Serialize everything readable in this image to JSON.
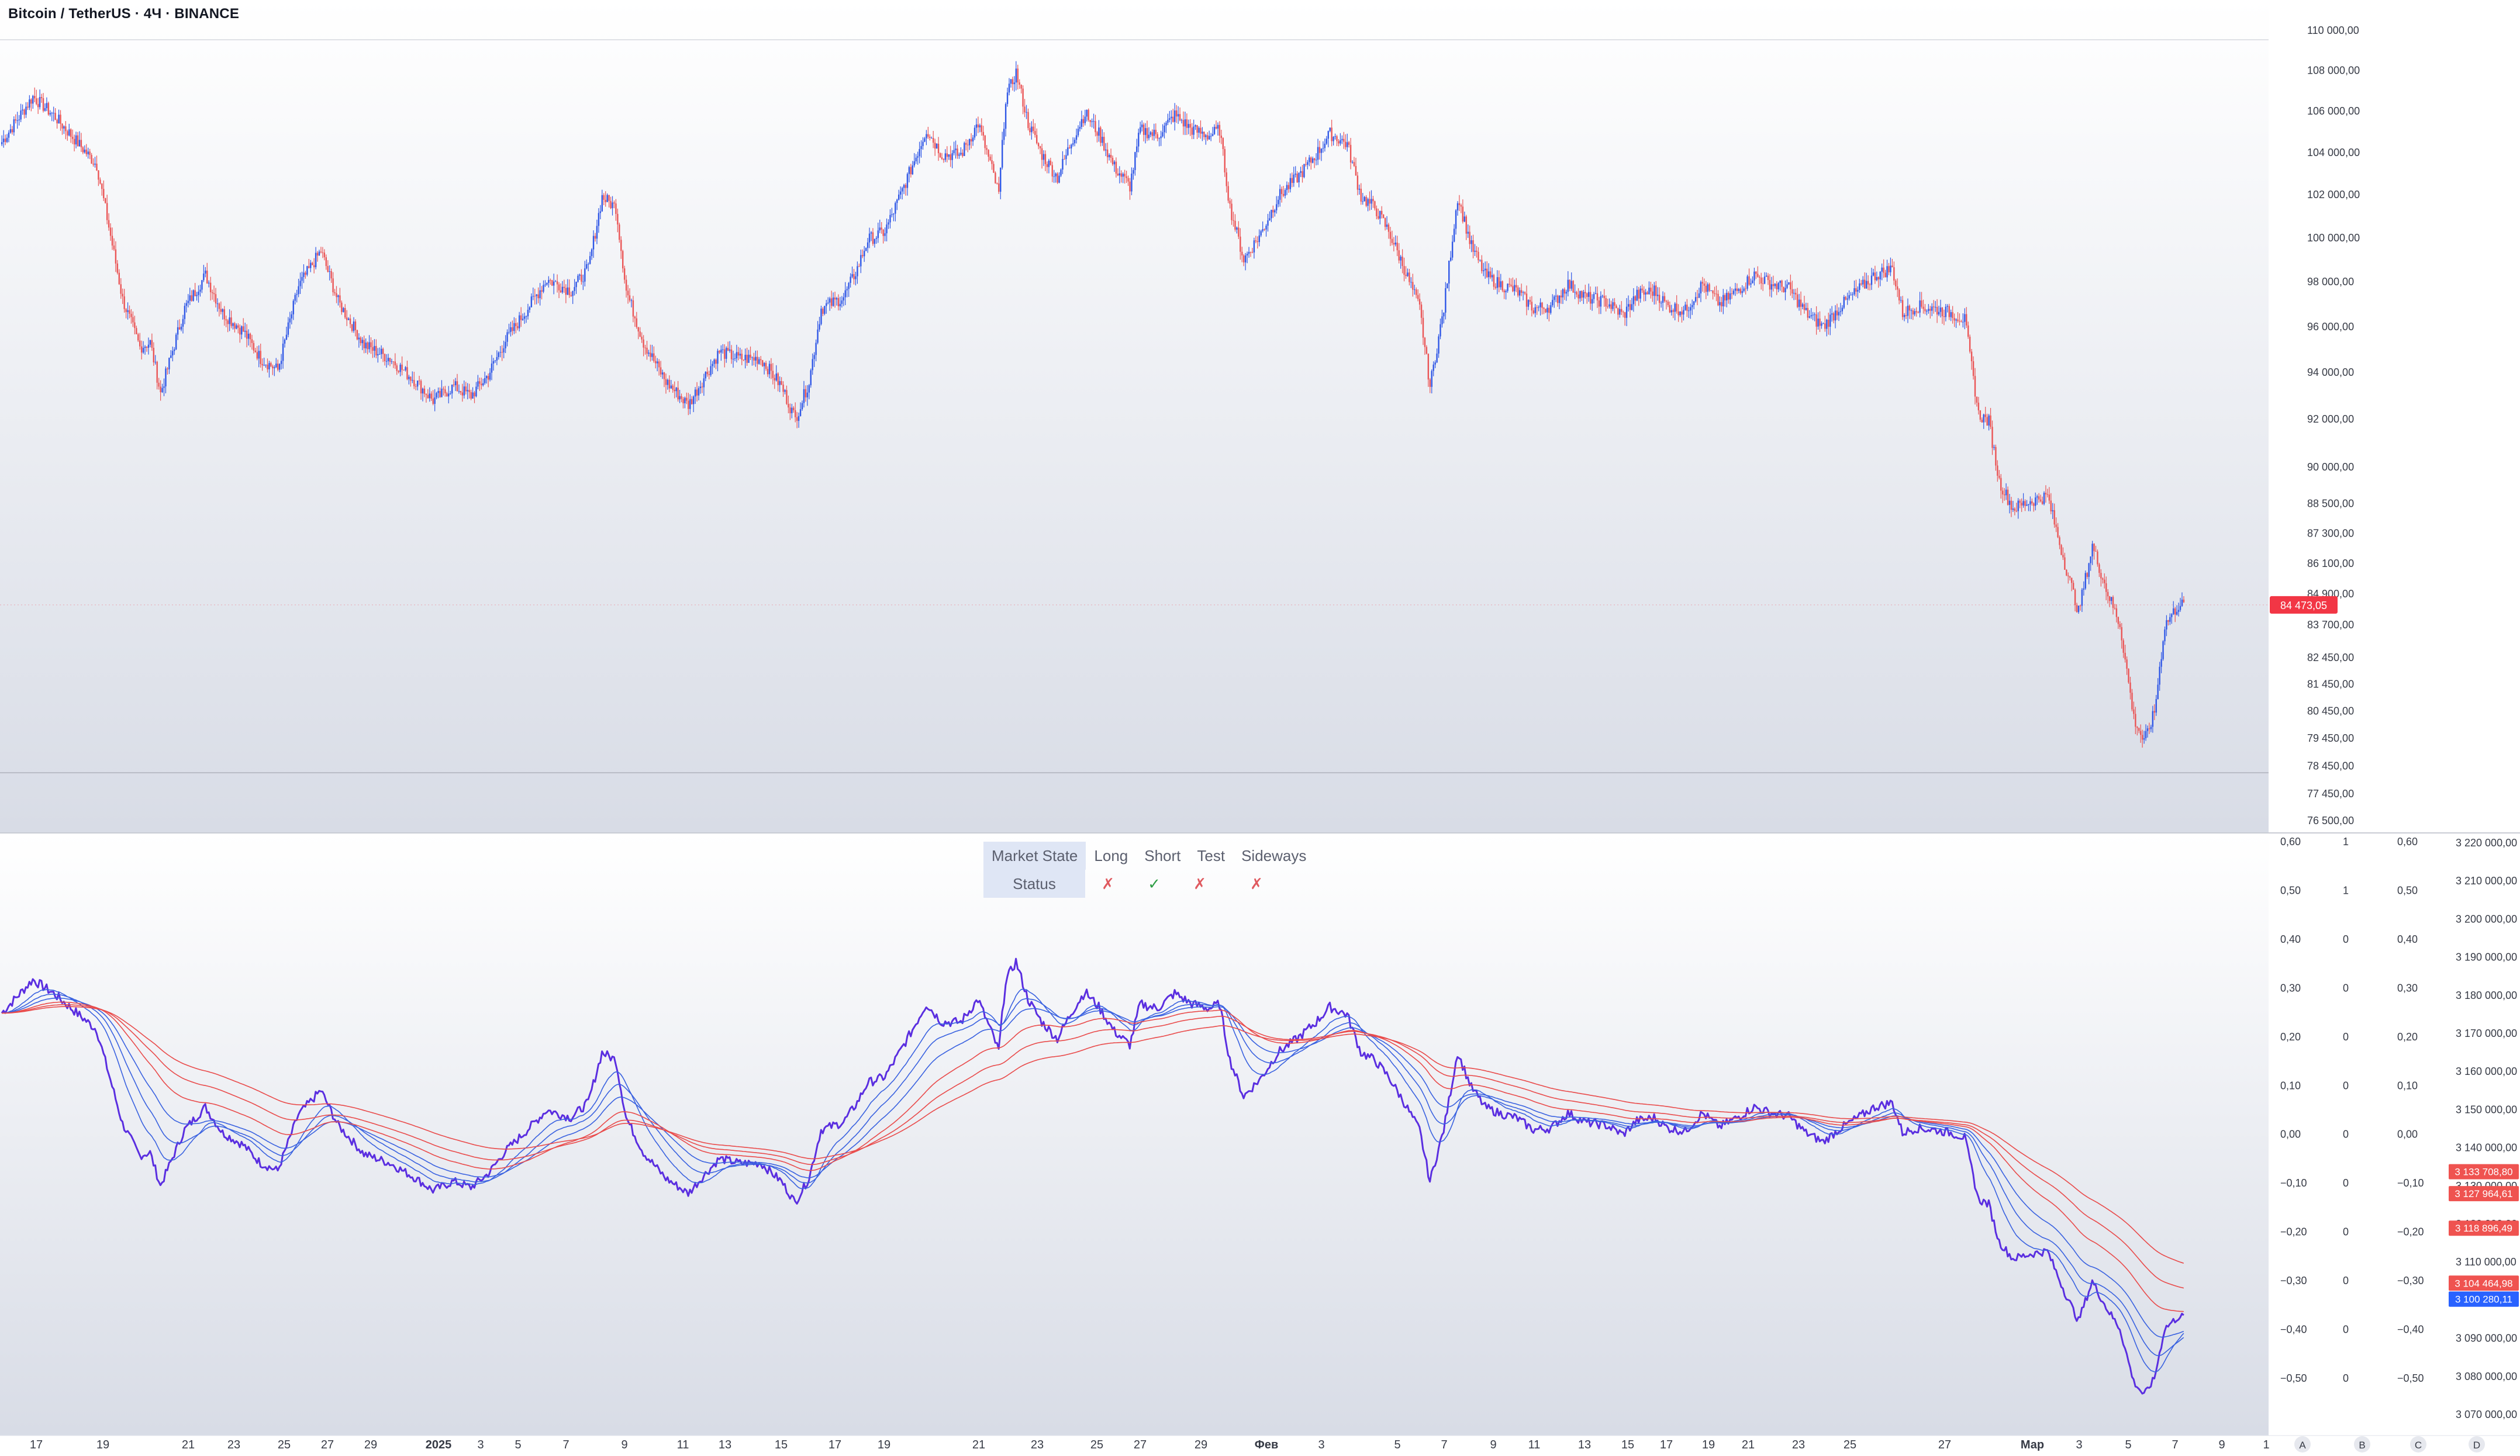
{
  "chart_title": "Bitcoin / TetherUS · 4Ч · BINANCE",
  "market_state": {
    "headers": [
      "Market State",
      "Long",
      "Short",
      "Test",
      "Sideways"
    ],
    "row_label": "Status",
    "values": [
      "✗",
      "✓",
      "✗",
      "✗"
    ]
  },
  "chart_data": [
    {
      "type": "candlestick",
      "series": [
        {
          "name": "Bitcoin / TetherUS",
          "values": "price path, approx 4H closes"
        }
      ],
      "ylim": [
        76500,
        110000
      ],
      "y_scale": "log",
      "yticks": [
        "110 000,00",
        "108 000,00",
        "106 000,00",
        "104 000,00",
        "102 000,00",
        "100 000,00",
        "98 000,00",
        "96 000,00",
        "94 000,00",
        "92 000,00",
        "90 000,00",
        "88 500,00",
        "87 300,00",
        "86 100,00",
        "84 900,00",
        "83 700,00",
        "82 450,00",
        "81 450,00",
        "80 450,00",
        "79 450,00",
        "78 450,00",
        "77 450,00",
        "76 500,00"
      ],
      "ytick_values": [
        110000,
        108000,
        106000,
        104000,
        102000,
        100000,
        98000,
        96000,
        94000,
        92000,
        90000,
        88500,
        87300,
        86100,
        84900,
        83700,
        82450,
        81450,
        80450,
        79450,
        78450,
        77450,
        76500
      ],
      "last_price_label": "84 473,05",
      "last_price": 84473.05,
      "keypoints": [
        [
          0,
          104500
        ],
        [
          18,
          106700
        ],
        [
          30,
          105800
        ],
        [
          55,
          103400
        ],
        [
          70,
          97200
        ],
        [
          80,
          95100
        ],
        [
          86,
          95300
        ],
        [
          92,
          93100
        ],
        [
          106,
          96800
        ],
        [
          118,
          98300
        ],
        [
          128,
          96600
        ],
        [
          140,
          95800
        ],
        [
          150,
          94600
        ],
        [
          160,
          94100
        ],
        [
          172,
          97800
        ],
        [
          185,
          99400
        ],
        [
          195,
          97100
        ],
        [
          210,
          95200
        ],
        [
          225,
          94600
        ],
        [
          240,
          93600
        ],
        [
          250,
          92800
        ],
        [
          262,
          93400
        ],
        [
          272,
          93000
        ],
        [
          282,
          93900
        ],
        [
          292,
          95400
        ],
        [
          303,
          96600
        ],
        [
          316,
          98100
        ],
        [
          330,
          97600
        ],
        [
          340,
          98600
        ],
        [
          348,
          101900
        ],
        [
          356,
          101400
        ],
        [
          362,
          97600
        ],
        [
          372,
          95300
        ],
        [
          385,
          93600
        ],
        [
          398,
          92600
        ],
        [
          408,
          93900
        ],
        [
          416,
          94900
        ],
        [
          428,
          94600
        ],
        [
          440,
          94600
        ],
        [
          452,
          93400
        ],
        [
          460,
          92000
        ],
        [
          468,
          93600
        ],
        [
          475,
          96800
        ],
        [
          488,
          97300
        ],
        [
          496,
          98600
        ],
        [
          502,
          99900
        ],
        [
          512,
          100300
        ],
        [
          520,
          101800
        ],
        [
          528,
          103400
        ],
        [
          536,
          105100
        ],
        [
          545,
          103900
        ],
        [
          556,
          103900
        ],
        [
          566,
          105400
        ],
        [
          574,
          103200
        ],
        [
          578,
          102000
        ],
        [
          582,
          106600
        ],
        [
          588,
          107900
        ],
        [
          595,
          105400
        ],
        [
          603,
          103900
        ],
        [
          612,
          102800
        ],
        [
          620,
          104500
        ],
        [
          628,
          105900
        ],
        [
          636,
          104900
        ],
        [
          645,
          103300
        ],
        [
          654,
          102400
        ],
        [
          660,
          105100
        ],
        [
          670,
          104800
        ],
        [
          680,
          105800
        ],
        [
          690,
          105100
        ],
        [
          700,
          104800
        ],
        [
          706,
          105100
        ],
        [
          712,
          101400
        ],
        [
          720,
          99000
        ],
        [
          730,
          100200
        ],
        [
          740,
          101900
        ],
        [
          752,
          102900
        ],
        [
          762,
          103900
        ],
        [
          770,
          104900
        ],
        [
          780,
          104400
        ],
        [
          788,
          101900
        ],
        [
          796,
          101400
        ],
        [
          804,
          100300
        ],
        [
          812,
          98800
        ],
        [
          822,
          96800
        ],
        [
          828,
          93400
        ],
        [
          836,
          96800
        ],
        [
          844,
          101900
        ],
        [
          852,
          99600
        ],
        [
          860,
          98300
        ],
        [
          868,
          97900
        ],
        [
          878,
          97600
        ],
        [
          888,
          96800
        ],
        [
          898,
          96900
        ],
        [
          908,
          97900
        ],
        [
          918,
          97300
        ],
        [
          930,
          97100
        ],
        [
          940,
          96500
        ],
        [
          948,
          97400
        ],
        [
          958,
          97600
        ],
        [
          966,
          96900
        ],
        [
          976,
          96700
        ],
        [
          986,
          97900
        ],
        [
          996,
          97000
        ],
        [
          1006,
          97600
        ],
        [
          1016,
          98300
        ],
        [
          1026,
          97900
        ],
        [
          1036,
          97700
        ],
        [
          1046,
          96600
        ],
        [
          1056,
          96000
        ],
        [
          1066,
          96900
        ],
        [
          1076,
          97600
        ],
        [
          1086,
          98300
        ],
        [
          1096,
          98600
        ],
        [
          1102,
          96600
        ],
        [
          1110,
          96900
        ],
        [
          1120,
          96800
        ],
        [
          1130,
          96600
        ],
        [
          1138,
          96300
        ],
        [
          1146,
          92200
        ],
        [
          1152,
          91900
        ],
        [
          1158,
          89400
        ],
        [
          1166,
          88300
        ],
        [
          1176,
          88600
        ],
        [
          1186,
          88800
        ],
        [
          1196,
          86100
        ],
        [
          1204,
          84200
        ],
        [
          1212,
          86800
        ],
        [
          1220,
          85100
        ],
        [
          1228,
          83700
        ],
        [
          1236,
          80200
        ],
        [
          1242,
          79300
        ],
        [
          1248,
          80400
        ],
        [
          1254,
          83700
        ],
        [
          1262,
          84473
        ]
      ]
    },
    {
      "type": "line",
      "series": [
        {
          "name": "",
          "color": "#5a2ee0"
        },
        {
          "name": "",
          "color": "#3a62e0"
        },
        {
          "name": "",
          "color": "#e94b4b"
        }
      ],
      "ylim": [
        -0.6,
        0.6
      ],
      "yticks_left": [
        "0,60",
        "0,50",
        "0,40",
        "0,30",
        "0,20",
        "0,10",
        "0,00",
        "−0,10",
        "−0,20",
        "−0,30",
        "−0,40",
        "−0,50"
      ],
      "ytick_values": [
        0.6,
        0.5,
        0.4,
        0.3,
        0.2,
        0.1,
        0.0,
        -0.1,
        -0.2,
        -0.3,
        -0.4,
        -0.5
      ],
      "extra_axis_values": [
        "1",
        "1",
        "0",
        "0",
        "0",
        "0",
        "0",
        "0",
        "0",
        "0",
        "0",
        "0"
      ],
      "yticks_right": [
        "3 220 000,00",
        "3 210 000,00",
        "3 200 000,00",
        "3 190 000,00",
        "3 180 000,00",
        "3 170 000,00",
        "3 160 000,00",
        "3 150 000,00",
        "3 140 000,00",
        "3 130 000,00",
        "3 120 000,00",
        "3 110 000,00",
        "3 100 000,00",
        "3 090 000,00",
        "3 080 000,00",
        "3 070 000,00"
      ],
      "right_tick_values": [
        3220000,
        3210000,
        3200000,
        3190000,
        3180000,
        3170000,
        3160000,
        3150000,
        3140000,
        3130000,
        3120000,
        3110000,
        3100000,
        3090000,
        3080000,
        3070000
      ],
      "price_labels": [
        {
          "text": "3 133 708,80",
          "color": "#ef5350"
        },
        {
          "text": "3 127 964,61",
          "color": "#ef5350"
        },
        {
          "text": "3 118 896,49",
          "color": "#ef5350"
        },
        {
          "text": "3 104 464,98",
          "color": "#ef5350"
        },
        {
          "text": "3 100 280,11",
          "color": "#2962ff"
        },
        {
          "text": "3 100 280,11",
          "color": "#2962ff"
        }
      ]
    }
  ],
  "x_axis": {
    "ticks": [
      "17",
      "19",
      "21",
      "23",
      "25",
      "27",
      "29",
      "2025",
      "3",
      "5",
      "7",
      "9",
      "11",
      "13",
      "15",
      "17",
      "19",
      "21",
      "23",
      "25",
      "27",
      "29",
      "Фев",
      "3",
      "5",
      "7",
      "9",
      "11",
      "13",
      "15",
      "17",
      "19",
      "21",
      "23",
      "25",
      "27",
      "Мар",
      "3",
      "5",
      "7",
      "9",
      "1"
    ],
    "bold_ticks": [
      "2025",
      "Фев",
      "Мар"
    ],
    "letters": [
      "A",
      "B",
      "C",
      "D"
    ]
  }
}
